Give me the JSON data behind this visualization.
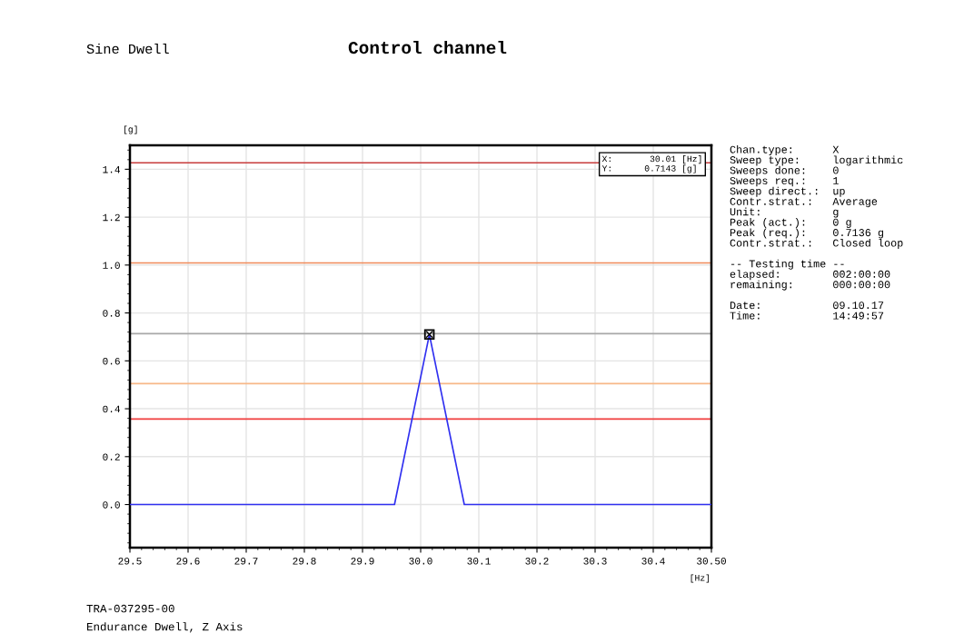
{
  "chart_data": {
    "type": "line",
    "title": "Control channel",
    "subtitle": "Sine Dwell",
    "xlabel": "[Hz]",
    "ylabel": "[g]",
    "x": [
      29.5,
      29.955,
      30.015,
      30.075,
      30.5
    ],
    "series": [
      {
        "color": "#3030f0",
        "values": [
          0,
          0,
          0.71,
          0,
          0
        ]
      }
    ],
    "xlim": [
      29.5,
      30.5
    ],
    "xticks": [
      29.5,
      29.6,
      29.7,
      29.8,
      29.9,
      {
        "value": 30.0,
        "label": "30.0"
      },
      30.1,
      30.2,
      30.3,
      30.4,
      {
        "value": 30.5,
        "label": "30.50"
      }
    ],
    "ylim": [
      -0.18,
      1.5
    ],
    "yticks": [
      {
        "value": 0,
        "label": "0.0"
      },
      0.2,
      0.4,
      0.6,
      0.8,
      {
        "value": 1,
        "label": "1.0"
      },
      1.2,
      1.4
    ],
    "ref_lines": [
      {
        "axis": "y",
        "value": 1.427,
        "color": "#c83c3c"
      },
      {
        "axis": "y",
        "value": 1.009,
        "color": "#f08a5a"
      },
      {
        "axis": "y",
        "value": 0.7136,
        "color": "#a8a8a8"
      },
      {
        "axis": "y",
        "value": 0.505,
        "color": "#f8b888"
      },
      {
        "axis": "y",
        "value": 0.357,
        "color": "#f03c3c"
      }
    ],
    "grid": true,
    "legend": false,
    "marker": "none",
    "line_style": "solid",
    "annotations": [
      "X:       30.01 [Hz]\nY:      0.7143 [g]",
      "Chan.type:      X\nSweep type:     logarithmic\nSweeps done:    0\nSweeps req.:    1\nSweep direct.:  up\nContr.strat.:   Average\nUnit:           g\nPeak (act.):    0 g\nPeak (req.):    0.7136 g\nContr.strat.:   Closed loop\n\n-- Testing time --\nelapsed:        002:00:00\nremaining:      000:00:00\n\nDate:           09.10.17\nTime:           14:49:57",
      "TRA-037295-00",
      "Endurance Dwell, Z Axis"
    ]
  }
}
